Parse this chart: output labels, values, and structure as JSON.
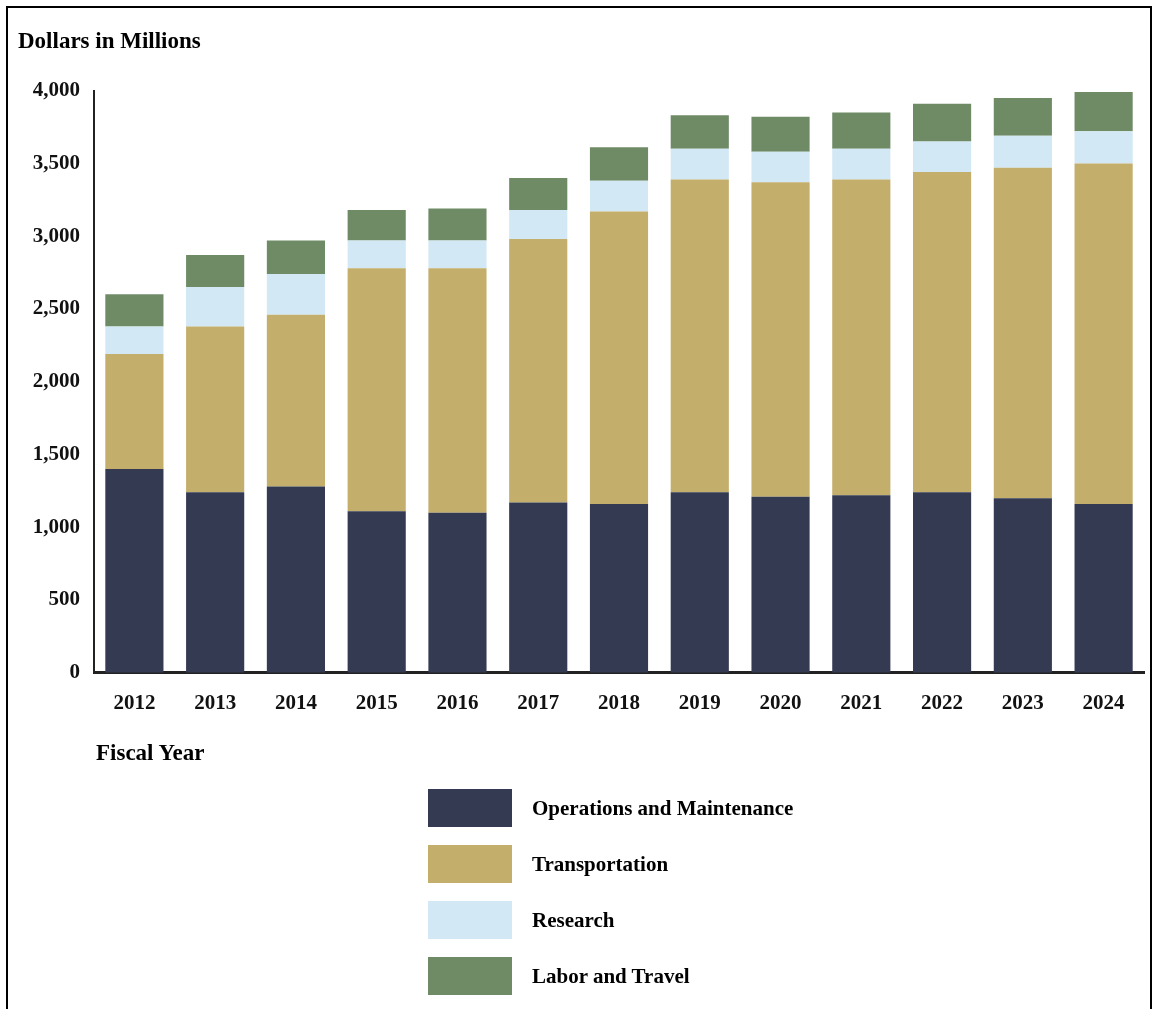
{
  "chart_data": {
    "type": "bar",
    "ylabel": "Dollars in Millions",
    "xlabel": "Fiscal Year",
    "stacked": true,
    "grid": false,
    "legend": "bottom",
    "categories": [
      "2012",
      "2013",
      "2014",
      "2015",
      "2016",
      "2017",
      "2018",
      "2019",
      "2020",
      "2021",
      "2022",
      "2023",
      "2024"
    ],
    "ylim": [
      0,
      4000
    ],
    "yticks": [
      0,
      {
        "value": 500,
        "label": "500"
      },
      {
        "value": 1000,
        "label": "1,000"
      },
      {
        "value": 1500,
        "label": "1,500"
      },
      {
        "value": 2000,
        "label": "2,000"
      },
      {
        "value": 2500,
        "label": "2,500"
      },
      {
        "value": 3000,
        "label": "3,000"
      },
      {
        "value": 3500,
        "label": "3,500"
      },
      {
        "value": 4000,
        "label": "4,000"
      }
    ],
    "series": [
      {
        "name": "Operations and Maintenance",
        "color": "#333a51",
        "values": [
          1400,
          1240,
          1280,
          1110,
          1100,
          1170,
          1160,
          1240,
          1210,
          1220,
          1240,
          1200,
          1160
        ]
      },
      {
        "name": "Transportation",
        "color": "#c3ae6b",
        "values": [
          790,
          1140,
          1180,
          1670,
          1680,
          1810,
          2010,
          2150,
          2160,
          2170,
          2200,
          2270,
          2340
        ]
      },
      {
        "name": "Research",
        "color": "#d2e8f5",
        "values": [
          190,
          270,
          280,
          190,
          190,
          200,
          210,
          210,
          210,
          210,
          210,
          220,
          220
        ]
      },
      {
        "name": "Labor and Travel",
        "color": "#6f8b66",
        "values": [
          220,
          220,
          230,
          210,
          220,
          220,
          230,
          230,
          240,
          250,
          260,
          260,
          270
        ]
      }
    ]
  }
}
